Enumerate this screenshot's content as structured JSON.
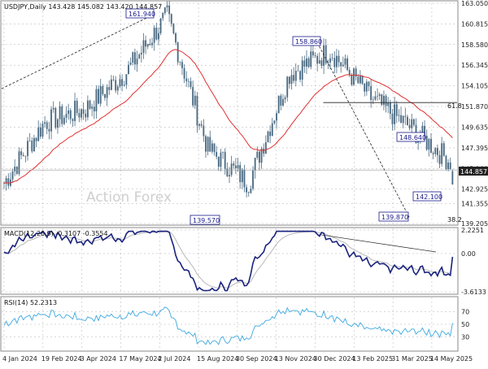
{
  "header": {
    "main_title": "USDJPY,Daily  143.428 145.082 143.420 144.857",
    "macd_title": "MACD(12,26,9) -0.3107 -0.3554",
    "rsi_title": "RSI(14) 52.2313",
    "watermark": "Action Forex"
  },
  "colors": {
    "candle": "#4a6a82",
    "ma": "#e03030",
    "macd": "#1a237e",
    "signal": "#b8b8b8",
    "rsi": "#3da8e0",
    "grid": "#b0b0b0",
    "box_border": "#1a1a8c",
    "last_price_box": "#222222"
  },
  "chart_data": [
    {
      "type": "candlestick",
      "title": "USDJPY,Daily",
      "ohlc_last": {
        "open": 143.428,
        "high": 145.082,
        "low": 143.42,
        "close": 144.857
      },
      "y_ticks": [
        "163.050",
        "160.815",
        "158.580",
        "156.345",
        "154.105",
        "151.870",
        "149.635",
        "147.395",
        "145.160",
        "142.925",
        "141.355",
        "139.205"
      ],
      "ylim": [
        139.205,
        163.05
      ],
      "x_ticks": [
        "4 Jan 2024",
        "19 Feb 2024",
        "3 Apr 2024",
        "17 May 2024",
        "2 Jul 2024",
        "15 Aug 2024",
        "30 Sep 2024",
        "13 Nov 2024",
        "30 Dec 2024",
        "13 Feb 2025",
        "31 Mar 2025",
        "14 May 2025"
      ],
      "last_price_label": "144.857",
      "overlay_series": {
        "name": "Moving average",
        "color": "#e03030"
      },
      "annotations": [
        "161.940",
        "158.860",
        "148.640",
        "142.100",
        "139.870",
        "139.570",
        "61.8",
        "38.2"
      ],
      "price_path": [
        [
          "4 Jan 2024",
          143.6
        ],
        [
          "19 Feb 2024",
          150.2
        ],
        [
          "3 Apr 2024",
          151.6
        ],
        [
          "17 May 2024",
          155.6
        ],
        [
          "2 Jul 2024",
          161.7
        ],
        [
          "15 Aug 2024",
          147.3
        ],
        [
          "30 Sep 2024",
          143.6
        ],
        [
          "13 Nov 2024",
          155.4
        ],
        [
          "30 Dec 2024",
          157.9
        ],
        [
          "13 Feb 2025",
          152.8
        ],
        [
          "31 Mar 2025",
          149.5
        ],
        [
          "14 May 2025",
          145.7
        ]
      ]
    },
    {
      "type": "line",
      "title": "MACD(12,26,9)",
      "y_ticks": [
        "2.2251",
        "0.00",
        "-3.6133"
      ],
      "ylim": [
        -3.6133,
        2.2251
      ],
      "series": [
        {
          "name": "MACD",
          "last": -0.3107
        },
        {
          "name": "Signal",
          "last": -0.3554
        }
      ]
    },
    {
      "type": "line",
      "title": "RSI(14)",
      "y_ticks": [
        "70",
        "50",
        "30"
      ],
      "ylim": [
        10,
        90
      ],
      "series": [
        {
          "name": "RSI(14)",
          "last": 52.2313
        }
      ]
    }
  ]
}
